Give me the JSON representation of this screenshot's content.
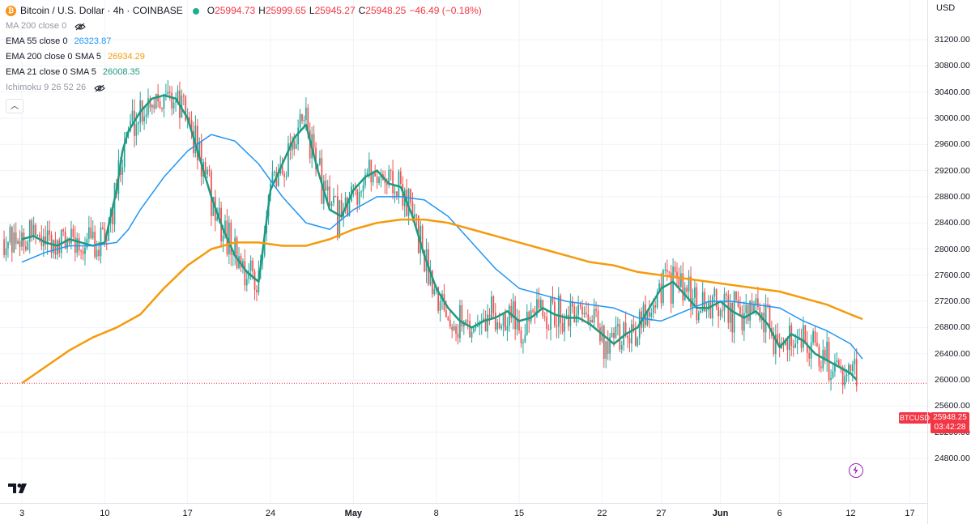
{
  "header": {
    "symbol_title": "Bitcoin / U.S. Dollar · 4h · COINBASE",
    "ohlc": [
      {
        "label": "O",
        "value": "25994.73"
      },
      {
        "label": "H",
        "value": "25999.65"
      },
      {
        "label": "L",
        "value": "25945.27"
      },
      {
        "label": "C",
        "value": "25948.25"
      }
    ],
    "change": "−46.49 (−0.18%)"
  },
  "indicators": [
    {
      "name": "MA 200 close 0",
      "value": "",
      "color": "#787b86",
      "hidden": true
    },
    {
      "name": "EMA 55 close 0",
      "value": "26323.87",
      "color": "#2196f3",
      "hidden": false
    },
    {
      "name": "EMA 200 close 0 SMA 5",
      "value": "26934.29",
      "color": "#f59a0b",
      "hidden": false
    },
    {
      "name": "EMA 21 close 0 SMA 5",
      "value": "26008.35",
      "color": "#1e9a80",
      "hidden": false
    },
    {
      "name": "Ichimoku 9 26 52 26",
      "value": "",
      "color": "#787b86",
      "hidden": true
    }
  ],
  "price_axis": {
    "currency": "USD",
    "ticks": [
      "31200.00",
      "30800.00",
      "30400.00",
      "30000.00",
      "29600.00",
      "29200.00",
      "28800.00",
      "28400.00",
      "28000.00",
      "27600.00",
      "27200.00",
      "26800.00",
      "26400.00",
      "26000.00",
      "25600.00",
      "25200.00",
      "24800.00"
    ]
  },
  "time_axis": {
    "labels": [
      "3",
      "10",
      "17",
      "24",
      "May",
      "8",
      "15",
      "22",
      "27",
      "Jun",
      "6",
      "12",
      "17"
    ]
  },
  "current_price": {
    "symbol": "BTCUSD",
    "price": "25948.25",
    "countdown": "03:42:28"
  },
  "colors": {
    "up": "#26a69a",
    "down": "#ef5350",
    "ema55": "#2196f3",
    "ema200": "#f59a0b",
    "ema21": "#1e9a80"
  },
  "chart_data": {
    "type": "line",
    "ylim": [
      24800,
      31400
    ],
    "x_ticks": [
      "3",
      "10",
      "17",
      "24",
      "May",
      "8",
      "15",
      "22",
      "27",
      "Jun",
      "6",
      "12",
      "17"
    ],
    "x_tick_days": [
      0,
      7,
      14,
      21,
      28,
      35,
      42,
      49,
      54,
      59,
      64,
      70,
      75
    ],
    "y_ticks": [
      24800,
      25200,
      25600,
      26000,
      26400,
      26800,
      27200,
      27600,
      28000,
      28400,
      28800,
      29200,
      29600,
      30000,
      30400,
      30800,
      31200
    ],
    "series": [
      {
        "name": "EMA 21 close 0 SMA 5",
        "color": "#1e9a80",
        "days": [
          0,
          1,
          2,
          3,
          4,
          5,
          6,
          7,
          8,
          8.5,
          9,
          10,
          11,
          12,
          13,
          14,
          15,
          16,
          17,
          18,
          19,
          20,
          21,
          22,
          23,
          24,
          25,
          26,
          27,
          28,
          29,
          30,
          31,
          32,
          33,
          34,
          35,
          36,
          37,
          38,
          39,
          40,
          41,
          42,
          43,
          44,
          45,
          46,
          47,
          48,
          49,
          50,
          51,
          52,
          53,
          54,
          55,
          56,
          57,
          58,
          59,
          60,
          61,
          62,
          63,
          64,
          65,
          66,
          67,
          68,
          69,
          70,
          70.5
        ],
        "values": [
          28150,
          28200,
          28100,
          28050,
          28150,
          28100,
          28050,
          28100,
          28900,
          29500,
          29800,
          30100,
          30300,
          30350,
          30300,
          30000,
          29400,
          28800,
          28300,
          27900,
          27650,
          27500,
          28900,
          29300,
          29700,
          29900,
          29200,
          28600,
          28500,
          28900,
          29100,
          29200,
          29000,
          28950,
          28500,
          27900,
          27400,
          27100,
          26900,
          26800,
          26900,
          26950,
          27050,
          26900,
          26950,
          27100,
          27000,
          26950,
          26950,
          26850,
          26700,
          26550,
          26700,
          26800,
          27100,
          27400,
          27500,
          27300,
          27100,
          27100,
          27200,
          27050,
          26950,
          27050,
          26850,
          26500,
          26700,
          26600,
          26400,
          26300,
          26200,
          26100,
          26000
        ]
      },
      {
        "name": "EMA 55 close 0",
        "color": "#2196f3",
        "days": [
          0,
          2,
          4,
          6,
          8,
          9,
          10,
          12,
          14,
          16,
          18,
          20,
          22,
          24,
          26,
          28,
          30,
          32,
          34,
          36,
          38,
          40,
          42,
          44,
          46,
          48,
          50,
          52,
          54,
          56,
          58,
          60,
          62,
          64,
          66,
          68,
          70,
          71
        ],
        "values": [
          27800,
          27950,
          28050,
          28050,
          28100,
          28300,
          28600,
          29100,
          29500,
          29750,
          29650,
          29300,
          28800,
          28400,
          28300,
          28600,
          28800,
          28800,
          28750,
          28500,
          28100,
          27700,
          27400,
          27300,
          27200,
          27150,
          27100,
          26950,
          26900,
          27050,
          27200,
          27200,
          27150,
          27100,
          26900,
          26750,
          26550,
          26320
        ]
      },
      {
        "name": "EMA 200 close 0 SMA 5",
        "color": "#f59a0b",
        "days": [
          0,
          2,
          4,
          6,
          8,
          10,
          12,
          14,
          16,
          18,
          20,
          22,
          24,
          26,
          28,
          30,
          32,
          34,
          36,
          38,
          40,
          42,
          44,
          46,
          48,
          50,
          52,
          54,
          56,
          58,
          60,
          62,
          64,
          66,
          68,
          70,
          71
        ],
        "values": [
          25950,
          26200,
          26450,
          26650,
          26800,
          27000,
          27400,
          27750,
          28000,
          28100,
          28100,
          28050,
          28050,
          28150,
          28300,
          28400,
          28450,
          28450,
          28400,
          28300,
          28200,
          28100,
          28000,
          27900,
          27800,
          27750,
          27650,
          27600,
          27550,
          27500,
          27450,
          27400,
          27350,
          27250,
          27150,
          27000,
          26930
        ]
      }
    ]
  }
}
